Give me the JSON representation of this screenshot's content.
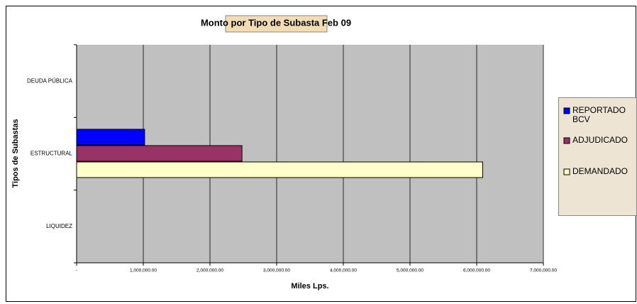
{
  "chart_data": {
    "type": "hbar",
    "title": "Monto por Tipo de Subasta Feb 09",
    "xlabel": "Miles Lps.",
    "ylabel": "Tipos de Subastas",
    "categories": [
      "DEUDA PÚBLICA",
      "ESTRUCTURAL",
      "LIQUIDEZ"
    ],
    "series": [
      {
        "name": "REPORTADO BCV",
        "color": "#0000ff",
        "values": [
          null,
          1020000,
          null
        ]
      },
      {
        "name": "ADJUDICADO",
        "color": "#993366",
        "values": [
          null,
          2480000,
          null
        ]
      },
      {
        "name": "DEMANDADO",
        "color": "#ffffcc",
        "values": [
          null,
          6090000,
          null
        ]
      }
    ],
    "xlim": [
      0,
      7000000
    ],
    "xticks": [
      {
        "value": 0,
        "label": "-"
      },
      {
        "value": 1000000,
        "label": "1,000,000.00"
      },
      {
        "value": 2000000,
        "label": "2,000,000.00"
      },
      {
        "value": 3000000,
        "label": "3,000,000.00"
      },
      {
        "value": 4000000,
        "label": "4,000,000.00"
      },
      {
        "value": 5000000,
        "label": "5,000,000.00"
      },
      {
        "value": 6000000,
        "label": "6,000,000.00"
      },
      {
        "value": 7000000,
        "label": "7,000,000.00"
      }
    ],
    "grid": true
  }
}
